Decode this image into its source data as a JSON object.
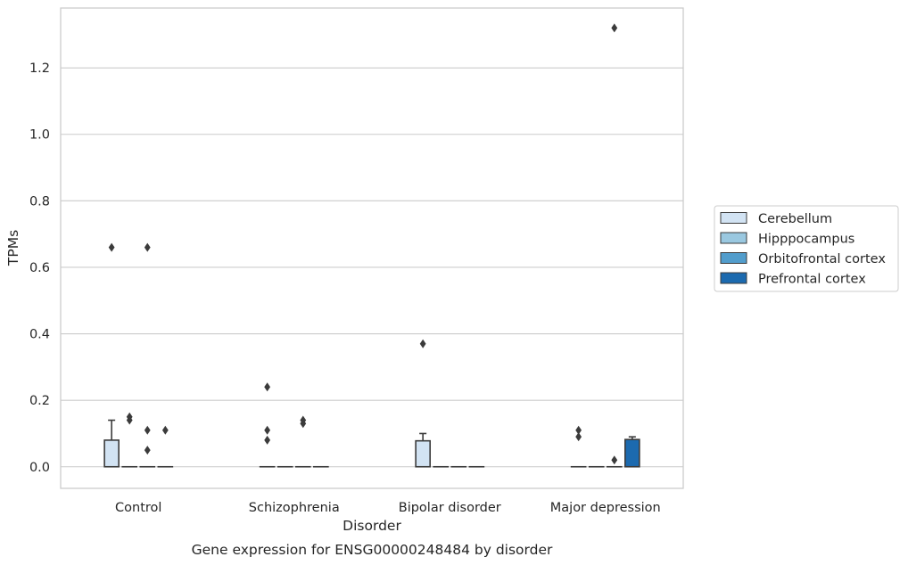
{
  "chart_data": {
    "type": "box",
    "title": "",
    "caption": "Gene expression for ENSG00000248484 by disorder",
    "xlabel": "Disorder",
    "ylabel": "TPMs",
    "ylim": [
      -0.065,
      1.38
    ],
    "yticks": [
      0.0,
      0.2,
      0.4,
      0.6,
      0.8,
      1.0,
      1.2
    ],
    "ytick_labels": [
      "0.0",
      "0.2",
      "0.4",
      "0.6",
      "0.8",
      "1.0",
      "1.2"
    ],
    "grid": "horizontal",
    "legend_position": "right",
    "categories": [
      "Control",
      "Schizophrenia",
      "Bipolar disorder",
      "Major depression"
    ],
    "series": [
      {
        "name": "Cerebellum",
        "color": "#d2e3f3",
        "boxes": [
          {
            "q1": 0.0,
            "median": 0.0,
            "q3": 0.08,
            "whisker_low": 0.0,
            "whisker_high": 0.14,
            "outliers": [
              0.66
            ]
          },
          {
            "q1": 0.0,
            "median": 0.0,
            "q3": 0.0,
            "whisker_low": 0.0,
            "whisker_high": 0.0,
            "outliers": [
              0.24,
              0.11,
              0.08
            ]
          },
          {
            "q1": 0.0,
            "median": 0.0,
            "q3": 0.078,
            "whisker_low": 0.0,
            "whisker_high": 0.1,
            "outliers": [
              0.37
            ]
          },
          {
            "q1": 0.0,
            "median": 0.0,
            "q3": 0.0,
            "whisker_low": 0.0,
            "whisker_high": 0.0,
            "outliers": [
              0.11,
              0.09
            ]
          }
        ]
      },
      {
        "name": "Hipppocampus",
        "color": "#9ac8e0",
        "boxes": [
          {
            "q1": 0.0,
            "median": 0.0,
            "q3": 0.0,
            "whisker_low": 0.0,
            "whisker_high": 0.0,
            "outliers": [
              0.15,
              0.14
            ]
          },
          {
            "q1": 0.0,
            "median": 0.0,
            "q3": 0.0,
            "whisker_low": 0.0,
            "whisker_high": 0.0,
            "outliers": []
          },
          {
            "q1": 0.0,
            "median": 0.0,
            "q3": 0.0,
            "whisker_low": 0.0,
            "whisker_high": 0.0,
            "outliers": []
          },
          {
            "q1": 0.0,
            "median": 0.0,
            "q3": 0.0,
            "whisker_low": 0.0,
            "whisker_high": 0.0,
            "outliers": []
          }
        ]
      },
      {
        "name": "Orbitofrontal cortex",
        "color": "#529dcc",
        "boxes": [
          {
            "q1": 0.0,
            "median": 0.0,
            "q3": 0.0,
            "whisker_low": 0.0,
            "whisker_high": 0.0,
            "outliers": [
              0.66,
              0.11,
              0.05
            ]
          },
          {
            "q1": 0.0,
            "median": 0.0,
            "q3": 0.0,
            "whisker_low": 0.0,
            "whisker_high": 0.0,
            "outliers": [
              0.14,
              0.13
            ]
          },
          {
            "q1": 0.0,
            "median": 0.0,
            "q3": 0.0,
            "whisker_low": 0.0,
            "whisker_high": 0.0,
            "outliers": []
          },
          {
            "q1": 0.0,
            "median": 0.0,
            "q3": 0.0,
            "whisker_low": 0.0,
            "whisker_high": 0.0,
            "outliers": [
              1.32,
              0.02
            ]
          }
        ]
      },
      {
        "name": "Prefrontal cortex",
        "color": "#1c6aaf",
        "boxes": [
          {
            "q1": 0.0,
            "median": 0.0,
            "q3": 0.0,
            "whisker_low": 0.0,
            "whisker_high": 0.0,
            "outliers": [
              0.11
            ]
          },
          {
            "q1": 0.0,
            "median": 0.0,
            "q3": 0.0,
            "whisker_low": 0.0,
            "whisker_high": 0.0,
            "outliers": []
          },
          {
            "q1": 0.0,
            "median": 0.0,
            "q3": 0.0,
            "whisker_low": 0.0,
            "whisker_high": 0.0,
            "outliers": []
          },
          {
            "q1": 0.0,
            "median": 0.0,
            "q3": 0.082,
            "whisker_low": 0.0,
            "whisker_high": 0.09,
            "outliers": []
          }
        ]
      }
    ]
  }
}
